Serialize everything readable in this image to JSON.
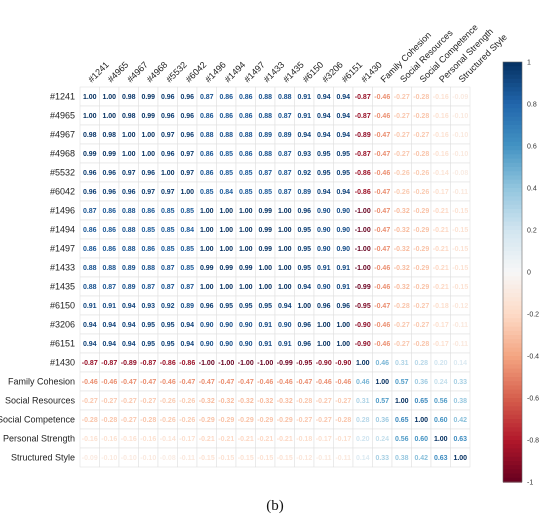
{
  "caption": "(b)",
  "chart_data": {
    "type": "heatmap",
    "labels": [
      "#1241",
      "#4965",
      "#4967",
      "#4968",
      "#5532",
      "#6042",
      "#1496",
      "#1494",
      "#1497",
      "#1433",
      "#1435",
      "#6150",
      "#3206",
      "#6151",
      "#1430",
      "Family Cohesion",
      "Social Resources",
      "Social Competence",
      "Personal Strength",
      "Structured Style"
    ],
    "values": [
      [
        1.0,
        1.0,
        0.98,
        0.99,
        0.96,
        0.96,
        0.87,
        0.86,
        0.86,
        0.88,
        0.88,
        0.91,
        0.94,
        0.94,
        -0.87,
        -0.46,
        -0.27,
        -0.28,
        -0.16,
        -0.09
      ],
      [
        1.0,
        1.0,
        0.98,
        0.99,
        0.96,
        0.96,
        0.86,
        0.86,
        0.86,
        0.88,
        0.87,
        0.91,
        0.94,
        0.94,
        -0.87,
        -0.46,
        -0.27,
        -0.28,
        -0.16,
        -0.1
      ],
      [
        0.98,
        0.98,
        1.0,
        1.0,
        0.97,
        0.96,
        0.88,
        0.88,
        0.88,
        0.89,
        0.89,
        0.94,
        0.94,
        0.94,
        -0.89,
        -0.47,
        -0.27,
        -0.27,
        -0.16,
        -0.1
      ],
      [
        0.99,
        0.99,
        1.0,
        1.0,
        0.96,
        0.97,
        0.86,
        0.85,
        0.86,
        0.88,
        0.87,
        0.93,
        0.95,
        0.95,
        -0.87,
        -0.47,
        -0.27,
        -0.28,
        -0.16,
        -0.1
      ],
      [
        0.96,
        0.96,
        0.97,
        0.96,
        1.0,
        0.97,
        0.86,
        0.85,
        0.85,
        0.87,
        0.87,
        0.92,
        0.95,
        0.95,
        -0.86,
        -0.46,
        -0.26,
        -0.26,
        -0.14,
        -0.08
      ],
      [
        0.96,
        0.96,
        0.96,
        0.97,
        0.97,
        1.0,
        0.85,
        0.84,
        0.85,
        0.85,
        0.87,
        0.89,
        0.94,
        0.94,
        -0.86,
        -0.47,
        -0.26,
        -0.26,
        -0.17,
        -0.11
      ],
      [
        0.87,
        0.86,
        0.88,
        0.86,
        0.85,
        0.85,
        1.0,
        1.0,
        1.0,
        0.99,
        1.0,
        0.96,
        0.9,
        0.9,
        -1.0,
        -0.47,
        -0.32,
        -0.29,
        -0.21,
        -0.15
      ],
      [
        0.86,
        0.86,
        0.88,
        0.85,
        0.85,
        0.84,
        1.0,
        1.0,
        1.0,
        0.99,
        1.0,
        0.95,
        0.9,
        0.9,
        -1.0,
        -0.47,
        -0.32,
        -0.29,
        -0.21,
        -0.15
      ],
      [
        0.86,
        0.86,
        0.88,
        0.86,
        0.85,
        0.85,
        1.0,
        1.0,
        1.0,
        0.99,
        1.0,
        0.95,
        0.9,
        0.9,
        -1.0,
        -0.47,
        -0.32,
        -0.29,
        -0.21,
        -0.15
      ],
      [
        0.88,
        0.88,
        0.89,
        0.88,
        0.87,
        0.85,
        0.99,
        0.99,
        0.99,
        1.0,
        1.0,
        0.95,
        0.91,
        0.91,
        -1.0,
        -0.46,
        -0.32,
        -0.29,
        -0.21,
        -0.15
      ],
      [
        0.88,
        0.87,
        0.89,
        0.87,
        0.87,
        0.87,
        1.0,
        1.0,
        1.0,
        1.0,
        1.0,
        0.94,
        0.9,
        0.91,
        -0.99,
        -0.46,
        -0.32,
        -0.29,
        -0.21,
        -0.15
      ],
      [
        0.91,
        0.91,
        0.94,
        0.93,
        0.92,
        0.89,
        0.96,
        0.95,
        0.95,
        0.95,
        0.94,
        1.0,
        0.96,
        0.96,
        -0.95,
        -0.47,
        -0.28,
        -0.27,
        -0.18,
        -0.12
      ],
      [
        0.94,
        0.94,
        0.94,
        0.95,
        0.95,
        0.94,
        0.9,
        0.9,
        0.9,
        0.91,
        0.9,
        0.96,
        1.0,
        1.0,
        -0.9,
        -0.46,
        -0.27,
        -0.27,
        -0.17,
        -0.11
      ],
      [
        0.94,
        0.94,
        0.94,
        0.95,
        0.95,
        0.94,
        0.9,
        0.9,
        0.9,
        0.91,
        0.91,
        0.96,
        1.0,
        1.0,
        -0.9,
        -0.46,
        -0.27,
        -0.28,
        -0.17,
        -0.11
      ],
      [
        -0.87,
        -0.87,
        -0.89,
        -0.87,
        -0.86,
        -0.86,
        -1.0,
        -1.0,
        -1.0,
        -1.0,
        -0.99,
        -0.95,
        -0.9,
        -0.9,
        1.0,
        0.46,
        0.31,
        0.28,
        0.2,
        0.14
      ],
      [
        -0.46,
        -0.46,
        -0.47,
        -0.47,
        -0.46,
        -0.47,
        -0.47,
        -0.47,
        -0.47,
        -0.46,
        -0.46,
        -0.47,
        -0.46,
        -0.46,
        0.46,
        1.0,
        0.57,
        0.36,
        0.24,
        0.33
      ],
      [
        -0.27,
        -0.27,
        -0.27,
        -0.27,
        -0.26,
        -0.26,
        -0.32,
        -0.32,
        -0.32,
        -0.32,
        -0.32,
        -0.28,
        -0.27,
        -0.27,
        0.31,
        0.57,
        1.0,
        0.65,
        0.56,
        0.38
      ],
      [
        -0.28,
        -0.28,
        -0.27,
        -0.28,
        -0.26,
        -0.26,
        -0.29,
        -0.29,
        -0.29,
        -0.29,
        -0.29,
        -0.27,
        -0.27,
        -0.28,
        0.28,
        0.36,
        0.65,
        1.0,
        0.6,
        0.42
      ],
      [
        -0.16,
        -0.16,
        -0.16,
        -0.16,
        -0.14,
        -0.17,
        -0.21,
        -0.21,
        -0.21,
        -0.21,
        -0.21,
        -0.18,
        -0.17,
        -0.17,
        0.2,
        0.24,
        0.56,
        0.6,
        1.0,
        0.63
      ],
      [
        -0.09,
        -0.1,
        -0.1,
        -0.1,
        -0.08,
        -0.11,
        -0.15,
        -0.15,
        -0.15,
        -0.15,
        -0.15,
        -0.12,
        -0.11,
        -0.11,
        0.14,
        0.33,
        0.38,
        0.42,
        0.63,
        1.0
      ]
    ],
    "color_range": [
      -1,
      1
    ],
    "colorbar_ticks": [
      1,
      0.8,
      0.6,
      0.4,
      0.2,
      0,
      -0.2,
      -0.4,
      -0.6,
      -0.8,
      -1
    ],
    "colors": {
      "positive": "#053061",
      "mid": "#f7f7f7",
      "negative": "#67001f"
    },
    "legend": "right",
    "grid": true
  }
}
